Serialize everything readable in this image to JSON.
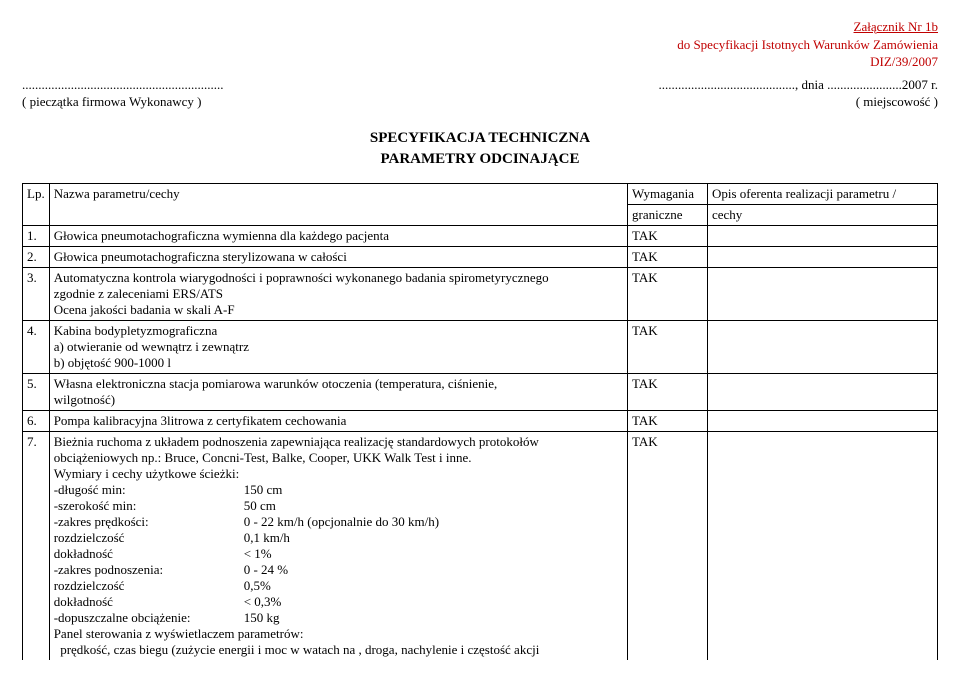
{
  "header": {
    "line1": "Załącznik Nr 1b",
    "line2": "do Specyfikacji Istotnych Warunków Zamówienia",
    "line3": "DIZ/39/2007"
  },
  "stamp": {
    "dots_left": "..............................................................",
    "caption_left": "( pieczątka firmowa Wykonawcy )",
    "dots_right_pre": "..........................................",
    "dots_right_mid": ", dnia .......................2007 r.",
    "caption_right": "( miejscowość )"
  },
  "title": {
    "line1": "SPECYFIKACJA TECHNICZNA",
    "line2": "PARAMETRY ODCINAJĄCE"
  },
  "table": {
    "head": {
      "lp": "Lp.",
      "nazwa": "Nazwa parametru/cechy",
      "wym1": "Wymagania",
      "wym2": "graniczne",
      "opis1": "Opis oferenta realizacji parametru /",
      "opis2": "cechy"
    },
    "rows": [
      {
        "lp": "1.",
        "nazwa_lines": [
          "Głowica pneumotachograficzna wymienna dla każdego pacjenta"
        ],
        "wym": "TAK"
      },
      {
        "lp": "2.",
        "nazwa_lines": [
          "Głowica pneumotachograficzna sterylizowana  w całości"
        ],
        "wym": "TAK"
      },
      {
        "lp": "3.",
        "nazwa_lines": [
          "Automatyczna kontrola wiarygodności i poprawności wykonanego badania spirometyrycznego",
          "zgodnie z zaleceniami ERS/ATS",
          "Ocena jakości badania w skali A-F"
        ],
        "wym": "TAK"
      },
      {
        "lp": "4.",
        "nazwa_lines": [
          "Kabina bodypletyzmograficzna",
          "a) otwieranie od wewnątrz i zewnątrz",
          "b) objętość 900-1000 l"
        ],
        "wym": "TAK"
      },
      {
        "lp": "5.",
        "nazwa_lines": [
          "Własna elektroniczna stacja pomiarowa  warunków  otoczenia (temperatura, ciśnienie,",
          "wilgotność)"
        ],
        "wym": "TAK"
      },
      {
        "lp": "6.",
        "nazwa_lines": [
          "Pompa kalibracyjna 3litrowa z certyfikatem cechowania"
        ],
        "wym": "TAK"
      }
    ],
    "row7": {
      "lp": "7.",
      "intro_lines": [
        "Bieżnia ruchoma z układem podnoszenia zapewniająca realizację standardowych protokołów",
        "obciążeniowych np.: Bruce, Concni-Test, Balke, Cooper, UKK Walk Test i inne.",
        "Wymiary i cechy użytkowe ścieżki:"
      ],
      "params": [
        {
          "label": "-długość min:",
          "val": "150 cm"
        },
        {
          "label": "-szerokość min:",
          "val": "50 cm"
        },
        {
          "label": "-zakres prędkości:",
          "val": "0 - 22 km/h (opcjonalnie do 30 km/h)"
        },
        {
          "label": "rozdzielczość",
          "val": "0,1 km/h"
        },
        {
          "label": "dokładność",
          "val": "< 1%"
        },
        {
          "label": "-zakres podnoszenia:",
          "val": "0 - 24 %"
        },
        {
          "label": "rozdzielczość",
          "val": "0,5%"
        },
        {
          "label": "dokładność",
          "val": "< 0,3%"
        },
        {
          "label": "-dopuszczalne obciążenie:",
          "val": "150 kg"
        }
      ],
      "footer_lines": [
        "Panel sterowania z wyświetlaczem parametrów:",
        "  prędkość, czas biegu (zużycie energii i moc w watach na , droga, nachylenie i częstość akcji"
      ],
      "wym": "TAK"
    }
  }
}
